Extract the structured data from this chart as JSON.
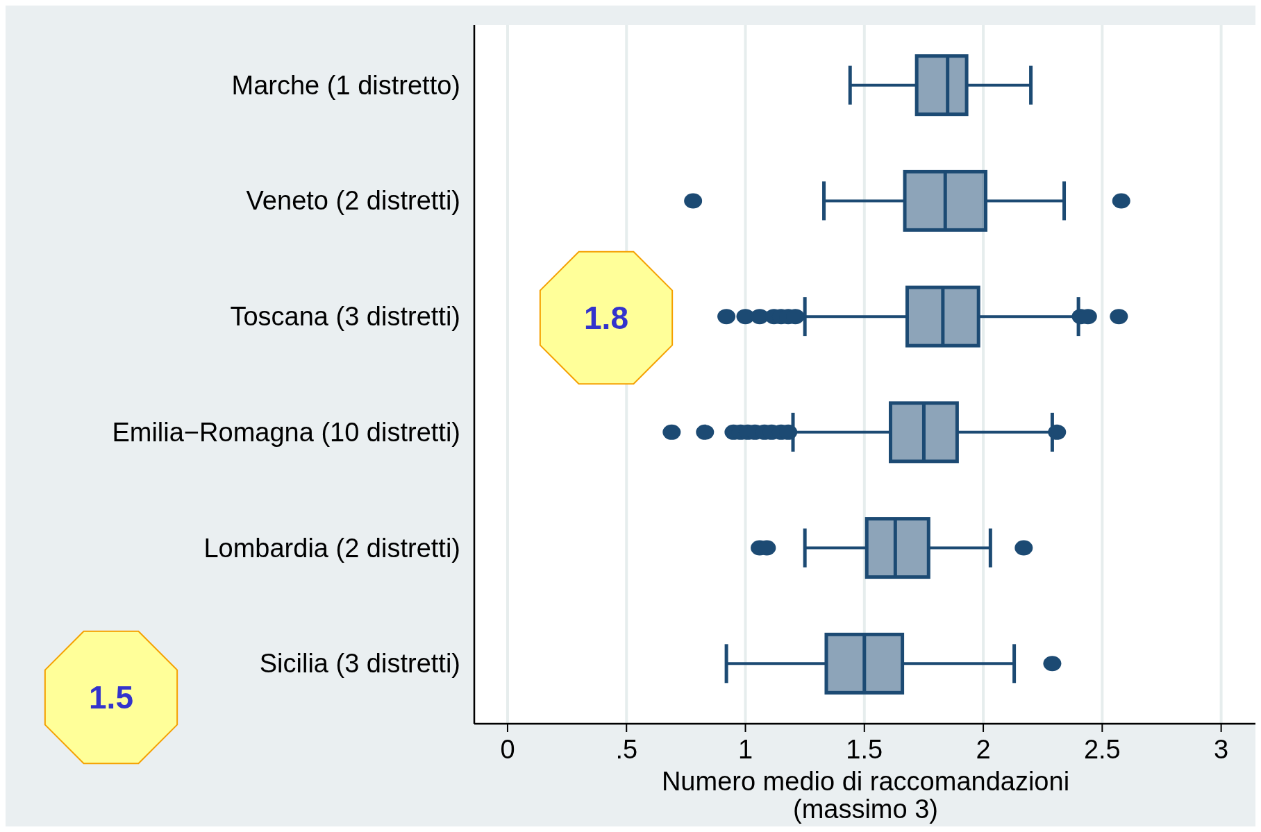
{
  "chart_data": {
    "type": "box",
    "orientation": "horizontal",
    "categories": [
      "Marche (1 distretto)",
      "Veneto (2 distretti)",
      "Toscana (3 distretti)",
      "Emilia−Romagna (10 distretti)",
      "Lombardia (2 distretti)",
      "Sicilia (3 distretti)"
    ],
    "series": [
      {
        "color": "#1c4a73",
        "boxes": [
          {
            "low": 1.44,
            "q1": 1.72,
            "median": 1.85,
            "q3": 1.93,
            "high": 2.2
          },
          {
            "low": 1.33,
            "q1": 1.67,
            "median": 1.84,
            "q3": 2.01,
            "high": 2.34,
            "outliers": [
              0.78,
              2.58
            ]
          },
          {
            "low": 1.25,
            "q1": 1.68,
            "median": 1.83,
            "q3": 1.98,
            "high": 2.4,
            "outliers": [
              0.92,
              1.0,
              1.06,
              1.12,
              1.15,
              1.18,
              1.21,
              2.41,
              2.44,
              2.57
            ]
          },
          {
            "low": 1.2,
            "q1": 1.61,
            "median": 1.75,
            "q3": 1.89,
            "high": 2.29,
            "outliers": [
              0.69,
              0.83,
              0.95,
              0.98,
              1.01,
              1.04,
              1.08,
              1.11,
              1.15,
              1.18,
              2.31
            ]
          },
          {
            "low": 1.25,
            "q1": 1.51,
            "median": 1.63,
            "q3": 1.77,
            "high": 2.03,
            "outliers": [
              1.06,
              1.09,
              2.17
            ]
          },
          {
            "low": 0.92,
            "q1": 1.34,
            "median": 1.5,
            "q3": 1.66,
            "high": 2.13,
            "outliers": [
              2.29
            ]
          }
        ]
      }
    ],
    "xlabel": "Numero medio di raccomandazioni\n(massimo 3)",
    "xlim": [
      -0.14,
      3.15
    ],
    "xticks": [
      0,
      {
        "value": 0.5,
        "label": ".5"
      },
      1,
      1.5,
      2,
      2.5,
      3
    ],
    "grid": "x",
    "annotations": [
      "1.8",
      "1.5"
    ]
  }
}
